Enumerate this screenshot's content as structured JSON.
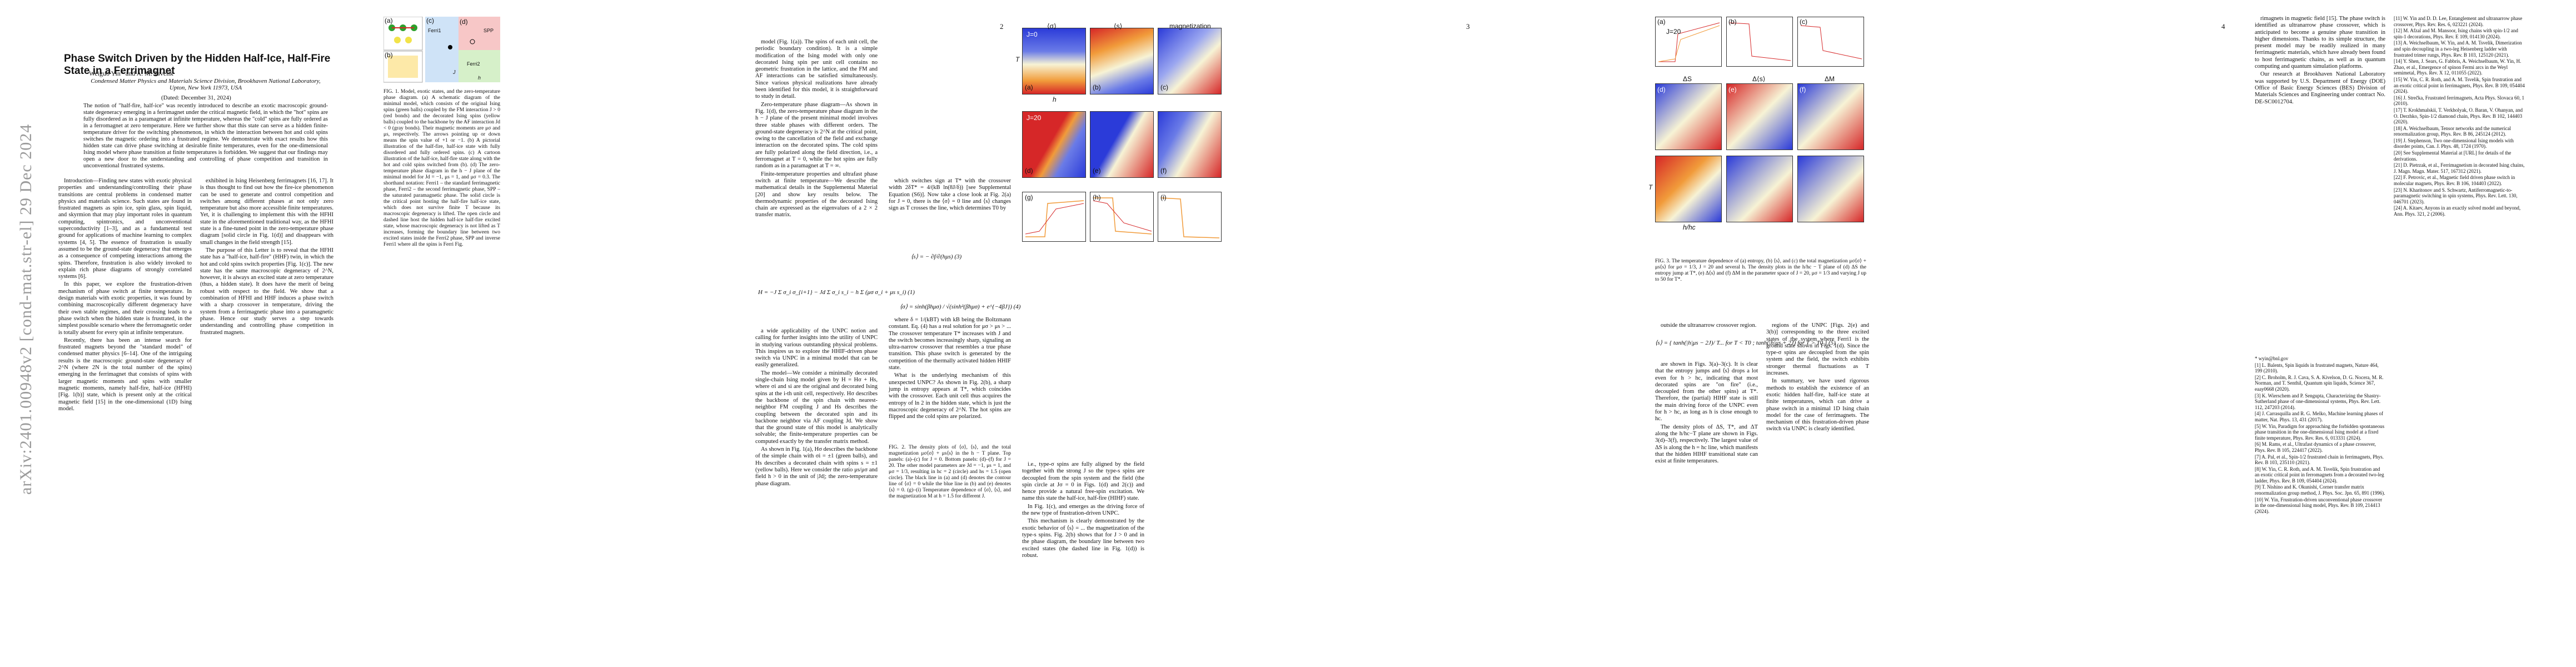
{
  "page1": {
    "arxiv_id": "arXiv:2401.00948v2 [cond-mat.str-el] 29 Dec 2024",
    "title": "Phase Switch Driven by the Hidden Half-Ice, Half-Fire State in a Ferrimagnet",
    "authors": "Weiguo Yin* and A. M. Tsvelik",
    "affiliation": "Condensed Matter Physics and Materials Science Division, Brookhaven National Laboratory, Upton, New York 11973, USA",
    "date": "(Dated: December 31, 2024)",
    "abstract": "The notion of \"half-fire, half-ice\" was recently introduced to describe an exotic macroscopic ground-state degeneracy emerging in a ferrimagnet under the critical magnetic field, in which the \"hot\" spins are fully disordered as in a paramagnet at infinite temperature, whereas the \"cold\" spins are fully ordered as in a ferromagnet at zero temperature. Here we further show that this state can serve as a hidden finite-temperature driver for the switching phenomenon, in which the interaction between hot and cold spins switches the magnetic ordering into a frustrated regime. We demonstrate with exact results how this hidden state can drive phase switching at desirable finite temperatures, even for the one-dimensional Ising model where phase transition at finite temperatures is forbidden. We suggest that our findings may open a new door to the understanding and controlling of phase competition and transition in unconventional frustrated systems.",
    "col1": [
      "Introduction—Finding new states with exotic physical properties and understanding/controlling their phase transitions are central problems in condensed matter physics and materials science. Such states are found in frustrated magnets as spin ice, spin glass, spin liquid, and skyrmion that may play important roles in quantum computing, spintronics, and unconventional superconductivity [1–3], and as a fundamental test ground for applications of machine learning to complex systems [4, 5]. The essence of frustration is usually assumed to be the ground-state degeneracy that emerges as a consequence of competing interactions among the spins. Therefore, frustration is also widely invoked to explain rich phase diagrams of strongly correlated systems [6].",
      "In this paper, we explore the frustration-driven mechanism of phase switch at finite temperature. In design materials with exotic properties, it was found by combining macroscopically different degeneracy have their own stable regimes, and their crossing leads to a phase switch when the hidden state is frustrated, in the simplest possible scenario where the ferromagnetic order is totally absent for every spin at infinite temperature.",
      "Recently, there has been an intense search for frustrated magnets beyond the \"standard model\" of condensed matter physics [6–14]. One of the intriguing results is the macroscopic ground-state degeneracy of 2^N (where 2N is the total number of the spins) emerging in the ferrimagnet that consists of spins with larger magnetic moments and spins with smaller magnetic moments, namely half-fire, half-ice (HFHI) [Fig. 1(b)] state, which is present only at the critical magnetic field [15] in the one-dimensional (1D) Ising model."
    ],
    "col2": [
      "exhibited in Ising Heisenberg ferrimagnets [16, 17]. It is thus thought to find out how the fire-ice phenomenon can be used to generate and control competition and switches among different phases at not only zero temperature but also more accessible finite temperatures. Yet, it is challenging to implement this with the HFHI state in the aforementioned traditional way, as the HFHI state is a fine-tuned point in the zero-temperature phase diagram [solid circle in Fig. 1(d)] and disappears with small changes in the field strength [15].",
      "The purpose of this Letter is to reveal that the HFHI state has a \"half-ice, half-fire\" (HHF) twin, in which the hot and cold spins switch properties [Fig. 1(c)]. The new state has the same macroscopic degeneracy of 2^N, however, it is always an excited state at zero temperature (thus, a hidden state). It does have the merit of being robust with respect to the field. We show that a combination of HFHI and HHF induces a phase switch with a sharp crossover in temperature, driving the system from a ferrimagnetic phase into a paramagnetic phase. Hence our study serves a step towards understanding and controlling phase competition in frustrated magnets."
    ],
    "fig1_caption": "FIG. 1. Model, exotic states, and the zero-temperature phase diagram. (a) A schematic diagram of the minimal model, which consists of the original Ising spins (green balls) coupled by the FM interaction J > 0 (red bonds) and the decorated Ising spins (yellow balls) coupled to the backbone by the AF interaction Jd < 0 (gray bonds). Their magnetic moments are μσ and μs, respectively. The arrows pointing up or down means the spin value of +1 or −1. (b) A pictorial illustration of the half-fire, half-ice state with fully disordered and fully ordered spins. (c) A cartoon illustration of the half-ice, half-fire state along with the hot and cold spins switched from (b). (d) The zero-temperature phase diagram in the h − J plane of the minimal model for Jd = −1, μs = 1, and μσ = 0.3. The shorthand notation: Ferri1 – the standard ferrimagnetic phase, Ferri2 – the second ferrimagnetic phase, SPP – the saturated paramagnetic phase. The solid circle is the critical point hosting the half-fire half-ice state, which does not survive finite T because its macroscopic degeneracy is lifted. The open circle and dashed line host the hidden half-ice half-fire excited state, whose macroscopic degeneracy is not lifted as T increases, forming the boundary line between two excited states inside the Ferri2 phase, SPP and inverse Ferri1 where all the spins is Ferri Fig."
  },
  "fig1": {
    "label_a": "(a)",
    "label_b": "(b)",
    "label_c": "(c)",
    "label_d": "(d)",
    "region_ferri1": "Ferri1",
    "region_spp": "SPP",
    "region_ferri2": "Ferri2",
    "axis_h": "h",
    "axis_j": "J"
  },
  "page2": {
    "page_number": "2",
    "col1": [
      "model (Fig. 1(a)). The spins of each unit cell, the periodic boundary condition). It is a simple modification of the Ising model with only one decorated Ising spin per unit cell contains no geometric frustration in the lattice, and the FM and AF interactions can be satisfied simultaneously. Since various physical realizations have already been identified for this model, it is straightforward to study in detail.",
      "Zero-temperature phase diagram—As shown in Fig. 1(d), the zero-temperature phase diagram in the h − J plane of the present minimal model involves three stable phases with different orders. The ground-state degeneracy is 2^N at the critical point, owing to the cancellation of the field and exchange interaction on the decorated spins. The cold spins are fully polarized along the field direction, i.e., a ferromagnet at T = 0, while the hot spins are fully random as in a paramagnet at T = ∞.",
      "Finite-temperature properties and ultrafast phase switch at finite temperature—We describe the mathematical details in the Supplemental Material [20] and show key results below. The thermodynamic properties of the decorated Ising chain are expressed as the eigenvalues of a 2 × 2 transfer matrix."
    ],
    "eq1": "H = −J Σ σ_i σ_{i+1} − Jd Σ σ_i s_i − h Σ (μσ σ_i + μs s_i)   (1)",
    "eq2": "⟨s⟩ = − ∂f/∂(hμs)   (3)",
    "eq3": "⟨σ⟩ = sinh(βhμσ) / √(sinh²(βhμσ) + e^{−4βJ})   (4)",
    "col2": [
      "a wide applicability of the UNPC notion and calling for further insights into the utility of UNPC in studying various outstanding physical problems. This inspires us to explore the HHIF-driven phase switch via UNPC in a minimal model that can be easily generalized.",
      "The model—We consider a minimally decorated single-chain Ising model given by H = Hσ + Hs, where σi and si are the original and decorated Ising spins at the i-th unit cell, respectively. Hσ describes the backbone of the spin chain with nearest-neighbor FM coupling J and Hs describes the coupling between the decorated spin and its backbone neighbor via AF coupling Jd. We show that the ground state of this model is analytically solvable; the finite-temperature properties can be computed exactly by the transfer matrix method.",
      "As shown in Fig. 1(a), Hσ describes the backbone of the simple chain with σi = ±1 (green balls), and Hs describes a decorated chain with spins s = ±1 (yellow balls). Here we consider the ratio μs/μσ and field h > 0 in the unit of |Jd|; the zero-temperature phase diagram."
    ],
    "fig2_caption": "FIG. 2. The density plots of ⟨σ⟩, ⟨s⟩, and the total magnetization μσ⟨σ⟩ + μs⟨s⟩ in the h − T plane. Top panels: (a)–(c) for J = 0. Bottom panels: (d)–(f) for J = 20. The other model parameters are Jd = −1, μs = 1, and μσ = 1/3, resulting in hc = 2 (circle) and hs = 1.5 (open circle). The black line in (a) and (d) denotes the contour line of ⟨σ⟩ = 0 while the blue line in (b) and (e) denotes ⟨s⟩ = 0. (g)–(i) Temperature dependence of ⟨σ⟩, ⟨s⟩, and the magnetization M at h = 1.5 for different J.",
    "col3": [
      "which switches sign at T* with the crossover width 2δT* = 4/(kB ln(8J/δ)) [see Supplemental Equation (S6)]. Now take a close look at Fig. 2(a) for J = 0, there is the ⟨σ⟩ = 0 line and ⟨s⟩ changes sign as T crosses the line, which determines T0 by",
      "where δ = 1/(kBT) with kB being the Boltzmann constant. Eq. (4) has a real solution for μσ > μs > ... The crossover temperature T* increases with J and the switch becomes increasingly sharp, signaling an ultra-narrow crossover that resembles a true phase transition. This phase switch is generated by the competition of the thermally activated hidden HHIF state.",
      "What is the underlying mechanism of this unexpected UNPC? As shown in Fig. 2(b), a sharp jump in entropy appears at T*, which coincides with the crossover. Each unit cell thus acquires the entropy of ln 2 in the hidden state, which is just the macroscopic degeneracy of 2^N. The hot spins are flipped and the cold spins are polarized."
    ],
    "col4": [
      "i.e., type-σ spins are fully aligned by the field together with the strong J so the type-s spins are decoupled from the spin system and the field (the spin circle at Jσ = 0 in Figs. 1(d) and 2(c)) and hence provide a natural free-spin excitation. We name this state the half-ice, half-fire (HIHF) state.",
      "In Fig. 1(c), and emerges as the driving force of the new type of frustration-driven UNPC.",
      "This mechanism is clearly demonstrated by the exotic behavior of ⟨s⟩ = ... the magnetization of the type-s spins. Fig. 2(b) shows that for J > 0 and in the phase diagram, the boundary line between two excited states (the dashed line in Fig. 1(d)) is robust."
    ],
    "fig2": {
      "title_a": "⟨σ⟩",
      "title_b": "⟨s⟩",
      "title_c": "magnetization",
      "label_a": "(a)",
      "label_b": "(b)",
      "label_c": "(c)",
      "label_d": "(d)",
      "label_e": "(e)",
      "label_f": "(f)",
      "label_g": "(g)",
      "label_h": "(h)",
      "label_i": "(i)",
      "j_top": "J=0",
      "j_bottom": "J=20",
      "axis_t": "T",
      "axis_h": "h"
    }
  },
  "page3": {
    "page_number": "3",
    "fig3_caption": "FIG. 3. The temperature dependence of (a) entropy, (b) ⟨s⟩, and (c) the total magnetization μσ⟨σ⟩ + μs⟨s⟩ for μσ = 1/3, J = 20 and several h. The density plots in the h/hc − T plane of (d) ΔS the entropy jump at T*, (e) Δ⟨s⟩ and (f) ΔM in the parameter space of J = 20, μσ = 1/3 and varying J up to 50 for T*.",
    "fig3": {
      "label_a": "(a)",
      "label_b": "(b)",
      "label_c": "(c)",
      "label_d": "(d)",
      "label_e": "(e)",
      "label_f": "(f)",
      "title_d": "ΔS",
      "title_e": "Δ⟨s⟩",
      "title_f": "ΔM",
      "j_label": "J=20",
      "axis_t": "T",
      "axis_hc": "h/hc"
    },
    "col1": [
      "outside the ultranarrow crossover region.",
      "are shown in Figs. 3(a)–3(c). It is clear that the entropy jumps and ⟨s⟩ drops a lot even for h > hc, indicating that most decorated spins are \"on fire\" (i.e., decoupled from the other spins) at T*. Therefore, the (partial) HIHF state is still the main driving force of the UNPC even for h > hc, as long as h is close enough to hc.",
      "The density plots of ΔS, T*, and ΔT along the h/hc−T plane are shown in Figs. 3(d)–3(f), respectively. The largest value of ΔS is along the h = hc line, which manifests that the hidden HIHF transitional state can exist at finite temperatures."
    ],
    "eq5": "⟨s⟩ = { tanh(|h|μs − 2J)/ T... for T < T0 ; tanh(|h|μs + 2J) for T > T0 }   (5)",
    "col2": [
      "regions of the UNPC [Figs. 2(e) and 3(b)] corresponding to the three excited states of the system where Ferri1 is the ground state shown in Figs. 1(d). Since the type-σ spins are decoupled from the spin system and the field, the switch exhibits stronger thermal fluctuations as T increases.",
      "In summary, we have used rigorous methods to establish the existence of an exotic hidden half-fire, half-ice state at finite temperatures, which can drive a phase switch in a minimal 1D Ising chain model for the case of ferrimagnets. The mechanism of this frustration-driven phase switch via UNPC is clearly identified."
    ]
  },
  "page4": {
    "page_number": "4",
    "col1": [
      "rimagnets in magnetic field [15]. The phase switch is identified as ultranarrow phase crossover, which is anticipated to become a genuine phase transition in higher dimensions. Thanks to its simple structure, the present model may be readily realized in many ferrimagnetic materials, which have already been found to host ferrimagnetic chains, as well as in quantum computing and quantum simulation platforms.",
      "Our research at Brookhaven National Laboratory was supported by U.S. Department of Energy (DOE) Office of Basic Energy Sciences (BES) Division of Materials Sciences and Engineering under contract No. DE-SC0012704."
    ],
    "refs_left": [
      "* wyin@bnl.gov",
      "[1] L. Balents, Spin liquids in frustrated magnets, Nature 464, 199 (2010).",
      "[2] C. Broholm, R. J. Cava, S. A. Kivelson, D. G. Nocera, M. R. Norman, and T. Senthil, Quantum spin liquids, Science 367, eaay0668 (2020).",
      "[3] K. Wierschem and P. Sengupta, Characterizing the Shastry-Sutherland phase of one-dimensional systems, Phys. Rev. Lett. 112, 247203 (2014).",
      "[4] J. Carrasquilla and R. G. Melko, Machine learning phases of matter, Nat. Phys. 13, 431 (2017).",
      "[5] W. Yin, Paradigm for approaching the forbidden spontaneous phase transition in the one-dimensional Ising model at a fixed finite temperature, Phys. Rev. Res. 6, 013331 (2024).",
      "[6] M. Rams, et al., Ultrafast dynamics of a phase crossover, Phys. Rev. B 105, 224417 (2022).",
      "[7] A. Pal, et al., Spin-1/2 frustrated chain in ferrimagnets, Phys. Rev. B 103, 235110 (2021).",
      "[8] W. Yin, C. R. Roth, and A. M. Tsvelik, Spin frustration and an exotic critical point in ferromagnets from a decorated two-leg ladder, Phys. Rev. B 109, 054404 (2024).",
      "[9] T. Nishino and K. Okunishi, Corner transfer matrix renormalization group method, J. Phys. Soc. Jpn. 65, 891 (1996).",
      "[10] W. Yin, Frustration-driven unconventional phase crossover in the one-dimensional Ising model, Phys. Rev. B 109, 214413 (2024)."
    ],
    "refs_right": [
      "[11] W. Yin and D. D. Lee, Entanglement and ultranarrow phase crossover, Phys. Rev. Res. 6, 023221 (2024).",
      "[12] M. Afzal and M. Mansoor, Ising chains with spin-1/2 and spin-1 decorations, Phys. Rev. E 109, 014130 (2024).",
      "[13] A. Weichselbaum, W. Yin, and A. M. Tsvelik, Dimerization and spin decoupling in a two-leg Heisenberg ladder with frustrated trimer rungs, Phys. Rev. B 103, 125120 (2021).",
      "[14] Y. Shen, J. Sears, G. Fabbris, A. Weichselbaum, W. Yin, H. Zhao, et al., Emergence of spinon Fermi arcs in the Weyl semimetal, Phys. Rev. X 12, 011055 (2022).",
      "[15] W. Yin, C. R. Roth, and A. M. Tsvelik, Spin frustration and an exotic critical point in ferrimagnets, Phys. Rev. B 109, 054404 (2024).",
      "[16] J. Strečka, Frustrated ferrimagnets, Acta Phys. Slovaca 60, 1 (2010).",
      "[17] T. Krokhmalskii, T. Verkholyak, O. Baran, V. Ohanyan, and O. Derzhko, Spin-1/2 diamond chain, Phys. Rev. B 102, 144403 (2020).",
      "[18] A. Weichselbaum, Tensor networks and the numerical renormalization group, Phys. Rev. B 86, 245124 (2012).",
      "[19] J. Stephenson, Two one-dimensional Ising models with disorder points, Can. J. Phys. 48, 1724 (1970).",
      "[20] See Supplemental Material at [URL] for details of the derivations.",
      "[21] D. Pietrzak, et al., Ferrimagnetism in decorated Ising chains, J. Magn. Magn. Mater. 517, 167312 (2021).",
      "[22] F. Petrovic, et al., Magnetic field driven phase switch in molecular magnets, Phys. Rev. B 106, 104403 (2022).",
      "[23] N. Kharitonov and S. Schwartz, Antiferromagnetic-to-paramagnetic switching in spin systems, Phys. Rev. Lett. 130, 046701 (2023).",
      "[24] A. Kitaev, Anyons in an exactly solved model and beyond, Ann. Phys. 321, 2 (2006)."
    ]
  },
  "colors": {
    "red": "#d62728",
    "blue": "#2b3bd9",
    "yellow": "#f2e34a",
    "green": "#2ca02c",
    "orange": "#f19b3a",
    "gray": "#8a8a8a"
  }
}
